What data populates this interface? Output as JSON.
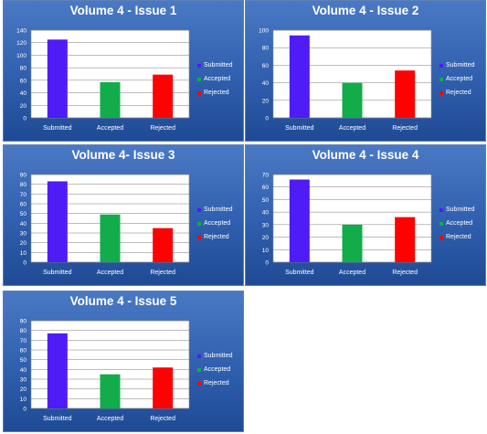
{
  "colors": {
    "Submitted": "#4f1bf7",
    "Accepted": "#12ac4a",
    "Rejected": "#fe0202"
  },
  "chart_data": [
    {
      "type": "bar",
      "title": "Volume 4 - Issue 1",
      "categories": [
        "Submitted",
        "Accepted",
        "Rejected"
      ],
      "values": [
        125,
        57,
        69
      ],
      "ylim": [
        0,
        140
      ],
      "yticks": [
        "0",
        "20",
        "40",
        "60",
        "80",
        "100",
        "120",
        "140"
      ],
      "grid": true,
      "legend": [
        "Submitted",
        "Accepted",
        "Rejected"
      ],
      "legend_position": "right"
    },
    {
      "type": "bar",
      "title": "Volume 4 - Issue 2",
      "categories": [
        "Submitted",
        "Accepted",
        "Rejected"
      ],
      "values": [
        94,
        40,
        54
      ],
      "ylim": [
        0,
        100
      ],
      "yticks": [
        "0",
        "20",
        "40",
        "60",
        "80",
        "100"
      ],
      "grid": true,
      "legend": [
        "Submitted",
        "Accepted",
        "Rejected"
      ],
      "legend_position": "right"
    },
    {
      "type": "bar",
      "title": "Volume 4- Issue 3",
      "categories": [
        "Submitted",
        "Accepted",
        "Rejected"
      ],
      "values": [
        83,
        49,
        35
      ],
      "ylim": [
        0,
        90
      ],
      "yticks": [
        "0",
        "10",
        "20",
        "30",
        "40",
        "50",
        "60",
        "70",
        "80",
        "90"
      ],
      "grid": true,
      "legend": [
        "Submitted",
        "Accepted",
        "Rejected"
      ],
      "legend_position": "right"
    },
    {
      "type": "bar",
      "title": "Volume 4 - Issue 4",
      "categories": [
        "Submitted",
        "Accepted",
        "Rejected"
      ],
      "values": [
        66,
        30,
        36
      ],
      "ylim": [
        0,
        70
      ],
      "yticks": [
        "0",
        "10",
        "20",
        "30",
        "40",
        "50",
        "60",
        "70"
      ],
      "grid": true,
      "legend": [
        "Submitted",
        "Accepted",
        "Rejected"
      ],
      "legend_position": "right"
    },
    {
      "type": "bar",
      "title": "Volume 4 - Issue 5",
      "categories": [
        "Submitted",
        "Accepted",
        "Rejected"
      ],
      "values": [
        77,
        35,
        42
      ],
      "ylim": [
        0,
        90
      ],
      "yticks": [
        "0",
        "10",
        "20",
        "30",
        "40",
        "50",
        "60",
        "70",
        "80",
        "90"
      ],
      "grid": true,
      "legend": [
        "Submitted",
        "Accepted",
        "Rejected"
      ],
      "legend_position": "right"
    }
  ]
}
